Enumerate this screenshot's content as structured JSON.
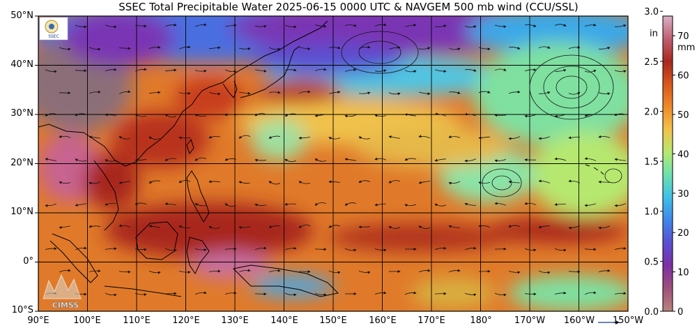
{
  "title": "SSEC Total Precipitable Water  2025-06-15 0000 UTC & NAVGEM 500 mb wind (CCU/SSL)",
  "lat_labels": [
    "50°N",
    "40°N",
    "30°N",
    "20°N",
    "10°N",
    "0°",
    "10°S"
  ],
  "lon_labels": [
    "90°E",
    "100°E",
    "110°E",
    "120°E",
    "130°E",
    "140°E",
    "150°E",
    "160°E",
    "170°E",
    "180°",
    "170°W",
    "160°W",
    "150°W"
  ],
  "map_extent": {
    "lon_min": 90,
    "lon_max": 210,
    "lat_min": -10,
    "lat_max": 50
  },
  "colorbar": {
    "mm_unit": "mm",
    "in_unit": "in",
    "mm_ticks": [
      "0",
      "10",
      "20",
      "30",
      "40",
      "50",
      "60",
      "70"
    ],
    "in_ticks": [
      "0.0",
      "0.5",
      "1.0",
      "1.5",
      "2.0",
      "2.5",
      "3.0"
    ],
    "mm_range": [
      0,
      75
    ],
    "colors": [
      "#b8847c",
      "#a0507c",
      "#7e2fa3",
      "#5a4fd1",
      "#3f86ea",
      "#3ec0e8",
      "#6de0b0",
      "#b6e870",
      "#f2c24c",
      "#ee8a2a",
      "#d8571c",
      "#a8281e",
      "#c06070",
      "#d8b0c8"
    ]
  },
  "logos": {
    "top_left": "SSEC",
    "bottom_left": "CIMSS"
  }
}
